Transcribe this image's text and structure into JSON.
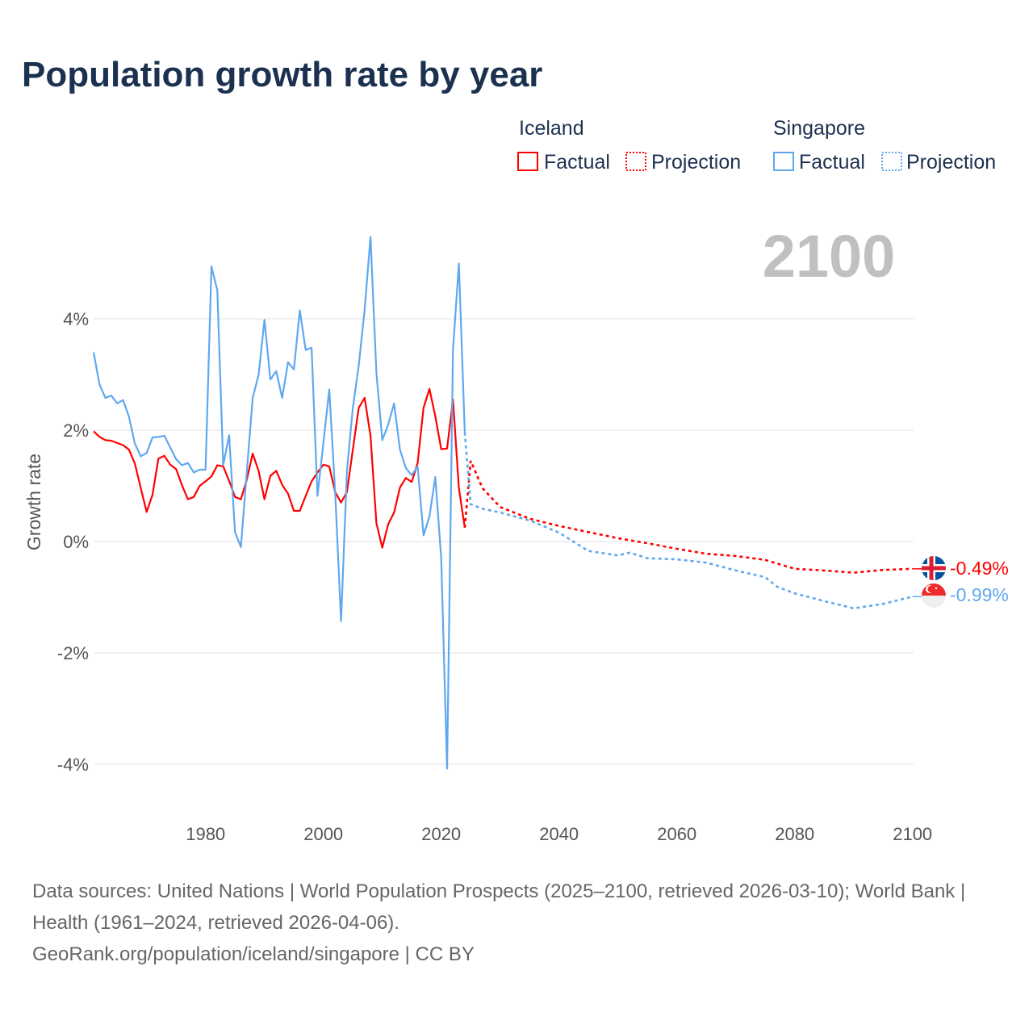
{
  "chart_data": {
    "type": "line",
    "title": "Population growth rate by year",
    "ylabel": "Growth rate",
    "xlabel": "",
    "xlim": [
      1961,
      2100
    ],
    "ylim": [
      -4.9,
      5.6
    ],
    "x_ticks": [
      1980,
      2000,
      2020,
      2040,
      2060,
      2080,
      2100
    ],
    "y_ticks": [
      {
        "v": 4,
        "label": "4%"
      },
      {
        "v": 2,
        "label": "2%"
      },
      {
        "v": 0,
        "label": "0%"
      },
      {
        "v": -2,
        "label": "-2%"
      },
      {
        "v": -4,
        "label": "-4%"
      }
    ],
    "grid": true,
    "current_year": "2100",
    "legend": {
      "placement": "top-right",
      "groups": [
        {
          "name": "Iceland",
          "items": [
            "Factual",
            "Projection"
          ]
        },
        {
          "name": "Singapore",
          "items": [
            "Factual",
            "Projection"
          ]
        }
      ]
    },
    "series": [
      {
        "name": "Iceland",
        "color": "#ff0000",
        "end_label": "-0.49%",
        "flag": "iceland-flag",
        "factual_start": 1961,
        "factual": [
          1.98,
          1.88,
          1.82,
          1.81,
          1.77,
          1.73,
          1.65,
          1.4,
          0.96,
          0.53,
          0.84,
          1.49,
          1.54,
          1.38,
          1.3,
          1.01,
          0.76,
          0.8,
          1.0,
          1.08,
          1.17,
          1.37,
          1.35,
          1.09,
          0.8,
          0.76,
          1.11,
          1.58,
          1.27,
          0.76,
          1.18,
          1.27,
          1.02,
          0.86,
          0.55,
          0.55,
          0.82,
          1.08,
          1.24,
          1.38,
          1.35,
          0.89,
          0.7,
          0.89,
          1.65,
          2.4,
          2.58,
          1.9,
          0.33,
          -0.11,
          0.31,
          0.52,
          0.97,
          1.14,
          1.07,
          1.41,
          2.4,
          2.74,
          2.25,
          1.66,
          1.67,
          2.55,
          0.96,
          0.25
        ],
        "projection_x": [
          2024,
          2025,
          2027,
          2030,
          2035,
          2040,
          2045,
          2050,
          2055,
          2060,
          2065,
          2070,
          2075,
          2080,
          2085,
          2090,
          2095,
          2100
        ],
        "projection": [
          0.25,
          1.45,
          0.96,
          0.62,
          0.41,
          0.28,
          0.17,
          0.06,
          -0.03,
          -0.13,
          -0.22,
          -0.26,
          -0.33,
          -0.49,
          -0.52,
          -0.56,
          -0.51,
          -0.49
        ]
      },
      {
        "name": "Singapore",
        "color": "#5fa8ef",
        "end_label": "-0.99%",
        "flag": "singapore-flag",
        "factual_start": 1961,
        "factual": [
          3.4,
          2.82,
          2.58,
          2.62,
          2.48,
          2.54,
          2.24,
          1.76,
          1.53,
          1.59,
          1.87,
          1.88,
          1.9,
          1.69,
          1.48,
          1.37,
          1.41,
          1.24,
          1.29,
          1.29,
          4.94,
          4.51,
          1.37,
          1.91,
          0.17,
          -0.1,
          1.25,
          2.58,
          2.99,
          3.98,
          2.91,
          3.06,
          2.58,
          3.22,
          3.09,
          4.15,
          3.44,
          3.48,
          0.82,
          1.77,
          2.73,
          0.89,
          -1.43,
          1.27,
          2.4,
          3.16,
          4.16,
          5.47,
          3.03,
          1.82,
          2.1,
          2.48,
          1.65,
          1.32,
          1.19,
          1.35,
          0.11,
          0.45,
          1.16,
          -0.3,
          -4.08,
          3.44,
          4.99,
          1.96
        ],
        "projection_x": [
          2024,
          2025,
          2027,
          2030,
          2035,
          2040,
          2045,
          2050,
          2052,
          2055,
          2060,
          2065,
          2070,
          2075,
          2077,
          2080,
          2085,
          2090,
          2095,
          2100
        ],
        "projection": [
          1.96,
          0.67,
          0.59,
          0.52,
          0.38,
          0.16,
          -0.17,
          -0.25,
          -0.2,
          -0.3,
          -0.32,
          -0.38,
          -0.52,
          -0.64,
          -0.81,
          -0.93,
          -1.07,
          -1.2,
          -1.12,
          -0.99
        ]
      }
    ]
  },
  "footer": {
    "sources": "Data sources: United Nations | World Population Prospects (2025–2100, retrieved 2026-03-10); World Bank | Health (1961–2024, retrieved 2026-04-06).",
    "link": "GeoRank.org/population/iceland/singapore | CC BY"
  }
}
